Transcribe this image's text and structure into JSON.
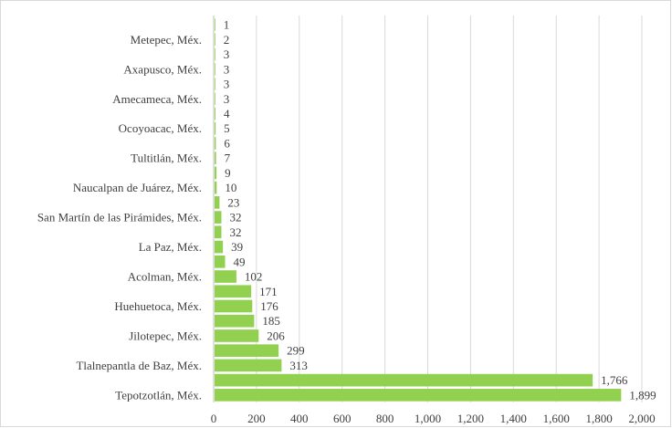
{
  "chart_data": {
    "type": "bar",
    "orientation": "horizontal",
    "title": "",
    "xlabel": "",
    "ylabel": "",
    "xlim": [
      0,
      2000
    ],
    "x_ticks": [
      0,
      200,
      400,
      600,
      800,
      1000,
      1200,
      1400,
      1600,
      1800,
      2000
    ],
    "x_tick_labels": [
      "0",
      "200",
      "400",
      "600",
      "800",
      "1,000",
      "1,200",
      "1,400",
      "1,600",
      "1,800",
      "2,000"
    ],
    "grid": "vertical",
    "legend": "none",
    "bar_color": "#92d050",
    "categories": [
      "",
      "Metepec, Méx.",
      "",
      "Axapusco, Méx.",
      "",
      "Amecameca, Méx.",
      "",
      "Ocoyoacac, Méx.",
      "",
      "Tultitlán, Méx.",
      "",
      "Naucalpan de Juárez, Méx.",
      "",
      "San Martín de las Pirámides, Méx.",
      "",
      "La Paz, Méx.",
      "",
      "Acolman, Méx.",
      "",
      "Huehuetoca, Méx.",
      "",
      "Jilotepec, Méx.",
      "",
      "Tlalnepantla de Baz, Méx.",
      "",
      "Tepotzotlán, Méx."
    ],
    "values": [
      1,
      2,
      3,
      3,
      3,
      3,
      4,
      5,
      6,
      7,
      9,
      10,
      23,
      32,
      32,
      39,
      49,
      102,
      171,
      176,
      185,
      206,
      299,
      313,
      1766,
      1899
    ],
    "value_labels": [
      "1",
      "2",
      "3",
      "3",
      "3",
      "3",
      "4",
      "5",
      "6",
      "7",
      "9",
      "10",
      "23",
      "32",
      "32",
      "39",
      "49",
      "102",
      "171",
      "176",
      "185",
      "206",
      "299",
      "313",
      "1,766",
      "1,899"
    ]
  }
}
